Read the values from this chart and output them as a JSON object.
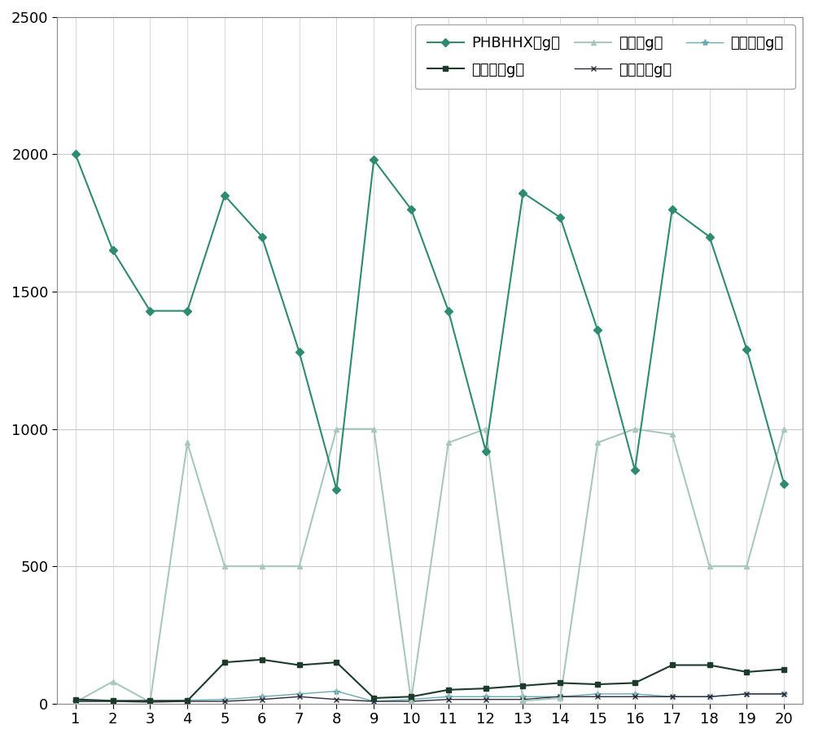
{
  "x": [
    1,
    2,
    3,
    4,
    5,
    6,
    7,
    8,
    9,
    10,
    11,
    12,
    13,
    14,
    15,
    16,
    17,
    18,
    19,
    20
  ],
  "PHBHHX": [
    2000,
    1650,
    1430,
    1430,
    1850,
    1700,
    1280,
    780,
    1980,
    1800,
    1430,
    920,
    1860,
    1770,
    1360,
    850,
    1800,
    1700,
    1290,
    800
  ],
  "glucose": [
    15,
    10,
    10,
    10,
    150,
    160,
    140,
    150,
    20,
    25,
    50,
    55,
    65,
    75,
    70,
    75,
    140,
    140,
    115,
    125
  ],
  "starch": [
    5,
    80,
    5,
    950,
    500,
    500,
    500,
    1000,
    1000,
    10,
    950,
    1000,
    10,
    20,
    950,
    1000,
    980,
    500,
    500,
    1000
  ],
  "coupling": [
    8,
    8,
    5,
    8,
    8,
    15,
    25,
    15,
    8,
    8,
    15,
    15,
    15,
    25,
    25,
    25,
    25,
    25,
    35,
    35
  ],
  "lubricant": [
    8,
    8,
    8,
    12,
    15,
    25,
    35,
    45,
    8,
    15,
    25,
    25,
    25,
    25,
    35,
    35,
    25,
    25,
    35,
    35
  ],
  "PHBHHX_color": "#2E8B72",
  "glucose_color": "#1C3B2A",
  "starch_color": "#A8C8BC",
  "coupling_color": "#2A2A3A",
  "lubricant_color": "#6BAAB0",
  "ylim": [
    0,
    2500
  ],
  "xlim": [
    0.5,
    20.5
  ],
  "legend_PHBHHX": "PHBHHX（g）",
  "legend_glucose": "葡萄糖（g）",
  "legend_starch": "淠粉（g）",
  "legend_coupling": "偶联剂（g）",
  "legend_lubricant": "润滑剂（g）",
  "yticks": [
    0,
    500,
    1000,
    1500,
    2000,
    2500
  ],
  "xticks": [
    1,
    2,
    3,
    4,
    5,
    6,
    7,
    8,
    9,
    10,
    11,
    12,
    13,
    14,
    15,
    16,
    17,
    18,
    19,
    20
  ],
  "grid_color": "#C8C8C8",
  "background_color": "#FFFFFF",
  "border_color": "#888888"
}
